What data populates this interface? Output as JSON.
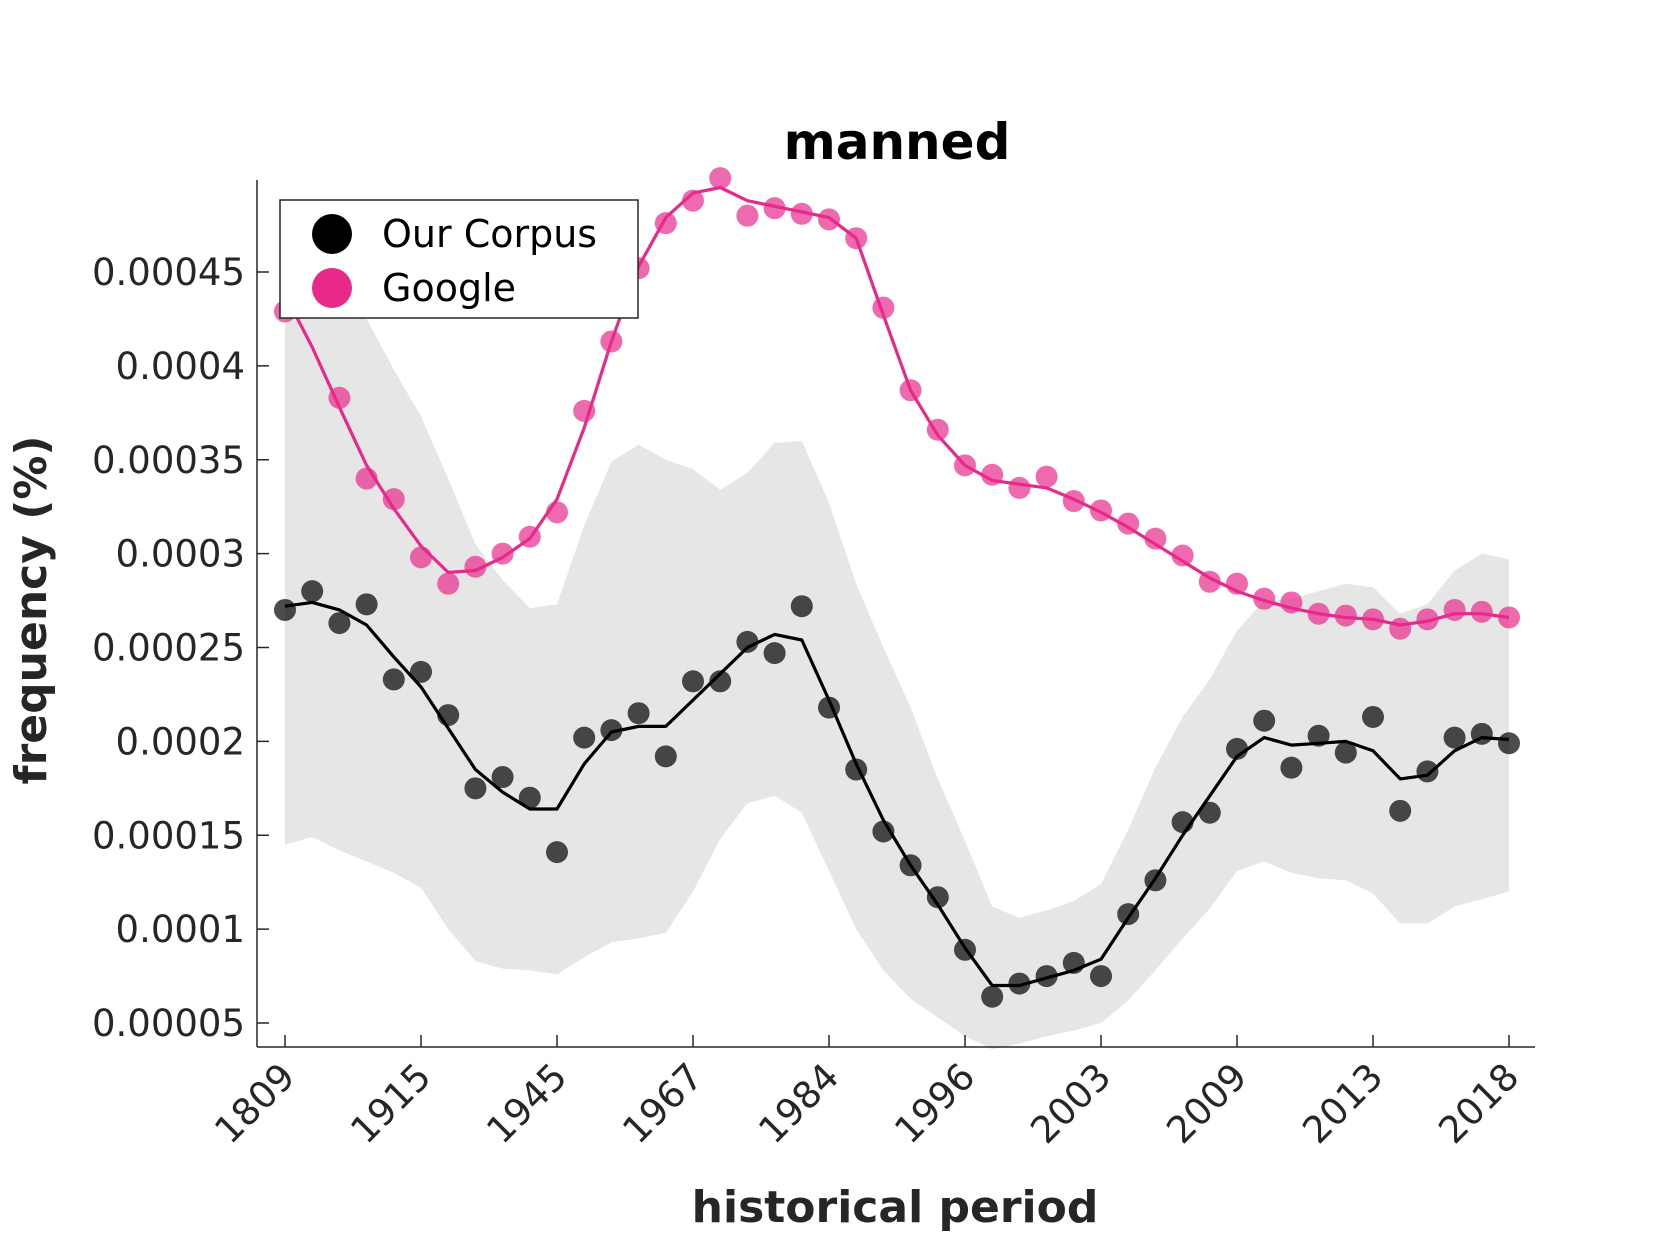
{
  "chart_data": {
    "type": "line",
    "title": "manned",
    "xlabel": "historical period",
    "ylabel": "frequency (%)",
    "x_tick_labels": [
      "1809",
      "1915",
      "1945",
      "1967",
      "1984",
      "1996",
      "2003",
      "2009",
      "2013",
      "2018"
    ],
    "y_tick_labels": [
      "0.00005",
      "0.0001",
      "0.00015",
      "0.0002",
      "0.00025",
      "0.0003",
      "0.00035",
      "0.0004",
      "0.00045"
    ],
    "y_ticks": [
      5e-05,
      0.0001,
      0.00015,
      0.0002,
      0.00025,
      0.0003,
      0.00035,
      0.0004,
      0.00045
    ],
    "ylim": [
      3.6e-05,
      0.0005
    ],
    "n_points": 46,
    "legend_position": "top-left",
    "grid": false,
    "colors": {
      "corpus": "#000000",
      "google": "#e7298a",
      "band": "#e6e6e6",
      "axis": "#262626"
    },
    "series": [
      {
        "name": "Our Corpus",
        "points": [
          0.00027,
          0.00028,
          0.000263,
          0.000273,
          0.000233,
          0.000237,
          0.000214,
          0.000175,
          0.000181,
          0.00017,
          0.000141,
          0.000202,
          0.000206,
          0.000215,
          0.000192,
          0.000232,
          0.000232,
          0.000253,
          0.000247,
          0.000272,
          0.000218,
          0.000185,
          0.000152,
          0.000134,
          0.000117,
          8.9e-05,
          6.4e-05,
          7.1e-05,
          7.5e-05,
          8.2e-05,
          7.5e-05,
          0.000108,
          0.000126,
          0.000157,
          0.000162,
          0.000196,
          0.000211,
          0.000186,
          0.000203,
          0.000194,
          0.000213,
          0.000163,
          0.000184,
          0.000202,
          0.000204,
          0.000199
        ],
        "smoothed": [
          0.000272,
          0.000274,
          0.00027,
          0.000262,
          0.000245,
          0.000229,
          0.000207,
          0.000185,
          0.000173,
          0.000164,
          0.000164,
          0.000188,
          0.000205,
          0.000208,
          0.000208,
          0.000222,
          0.000236,
          0.00025,
          0.000257,
          0.000254,
          0.000222,
          0.000188,
          0.000158,
          0.000134,
          0.000113,
          9e-05,
          7e-05,
          7e-05,
          7.4e-05,
          7.8e-05,
          8.4e-05,
          0.000106,
          0.000127,
          0.00015,
          0.000171,
          0.000192,
          0.000202,
          0.000198,
          0.000199,
          0.0002,
          0.000195,
          0.00018,
          0.000182,
          0.000195,
          0.000202,
          0.000201
        ],
        "band_upper": [
          0.00043,
          0.000445,
          0.000447,
          0.000425,
          0.000398,
          0.000373,
          0.00034,
          0.000305,
          0.000286,
          0.000271,
          0.000273,
          0.000315,
          0.000349,
          0.000358,
          0.00035,
          0.000345,
          0.000334,
          0.000343,
          0.000359,
          0.00036,
          0.000327,
          0.000284,
          0.00025,
          0.000218,
          0.00018,
          0.000147,
          0.000112,
          0.000106,
          0.00011,
          0.000115,
          0.000124,
          0.000153,
          0.000186,
          0.000213,
          0.000233,
          0.000259,
          0.000275,
          0.000276,
          0.00028,
          0.000284,
          0.000282,
          0.000268,
          0.000273,
          0.000291,
          0.0003,
          0.000297
        ],
        "band_lower": [
          0.000145,
          0.000149,
          0.000142,
          0.000136,
          0.00013,
          0.000122,
          0.0001,
          8.3e-05,
          7.9e-05,
          7.8e-05,
          7.6e-05,
          8.5e-05,
          9.3e-05,
          9.5e-05,
          9.8e-05,
          0.00012,
          0.000148,
          0.000167,
          0.000171,
          0.000162,
          0.000131,
          0.0001,
          7.8e-05,
          6.3e-05,
          5.3e-05,
          4.3e-05,
          3.6e-05,
          3.9e-05,
          4.3e-05,
          4.6e-05,
          5e-05,
          6.2e-05,
          7.8e-05,
          9.5e-05,
          0.000111,
          0.000131,
          0.000136,
          0.00013,
          0.000127,
          0.000126,
          0.000119,
          0.000103,
          0.000103,
          0.000112,
          0.000116,
          0.00012
        ]
      },
      {
        "name": "Google",
        "points": [
          0.000429,
          0.000438,
          0.000383,
          0.00034,
          0.000329,
          0.000298,
          0.000284,
          0.000293,
          0.0003,
          0.000309,
          0.000322,
          0.000376,
          0.000413,
          0.000452,
          0.000476,
          0.000488,
          0.0005,
          0.00048,
          0.000484,
          0.000481,
          0.000478,
          0.000468,
          0.000431,
          0.000387,
          0.000366,
          0.000347,
          0.000342,
          0.000335,
          0.000341,
          0.000328,
          0.000323,
          0.000316,
          0.000308,
          0.000299,
          0.000285,
          0.000284,
          0.000276,
          0.000274,
          0.000268,
          0.000267,
          0.000265,
          0.00026,
          0.000265,
          0.00027,
          0.000269,
          0.000266
        ],
        "smoothed": [
          0.000438,
          0.00041,
          0.000378,
          0.000347,
          0.000324,
          0.000304,
          0.00029,
          0.000291,
          0.000298,
          0.000308,
          0.000329,
          0.000367,
          0.000413,
          0.000453,
          0.000479,
          0.000492,
          0.000495,
          0.000488,
          0.000485,
          0.000482,
          0.000479,
          0.000468,
          0.000427,
          0.000387,
          0.000363,
          0.000347,
          0.000339,
          0.000337,
          0.000335,
          0.000329,
          0.000322,
          0.000314,
          0.000305,
          0.000296,
          0.000287,
          0.00028,
          0.000275,
          0.000271,
          0.000268,
          0.000266,
          0.000265,
          0.000262,
          0.000264,
          0.000268,
          0.000268,
          0.000266
        ]
      }
    ]
  }
}
